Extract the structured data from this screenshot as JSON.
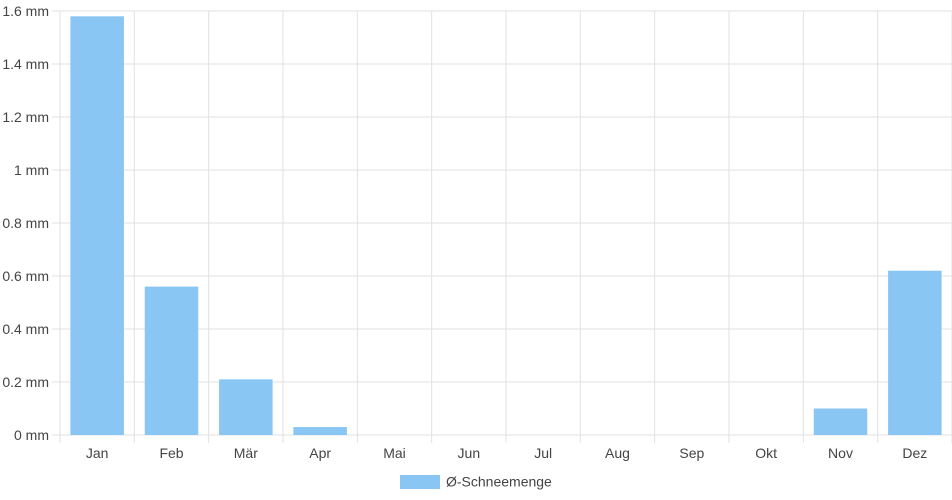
{
  "chart_data": {
    "type": "bar",
    "categories": [
      "Jan",
      "Feb",
      "Mär",
      "Apr",
      "Mai",
      "Jun",
      "Jul",
      "Aug",
      "Sep",
      "Okt",
      "Nov",
      "Dez"
    ],
    "series": [
      {
        "name": "Ø-Schneemenge",
        "values": [
          1.58,
          0.56,
          0.21,
          0.03,
          0,
          0,
          0,
          0,
          0,
          0,
          0.1,
          0.62
        ],
        "color": "#89c6f3"
      }
    ],
    "y_unit": "mm",
    "y_ticks": [
      "0 mm",
      "0.2 mm",
      "0.4 mm",
      "0.6 mm",
      "0.8 mm",
      "1 mm",
      "1.2 mm",
      "1.4 mm",
      "1.6 mm"
    ],
    "ylim": [
      0,
      1.6
    ],
    "grid": true,
    "legend_position": "bottom-center",
    "gridline_color": "#e2e2e2"
  }
}
